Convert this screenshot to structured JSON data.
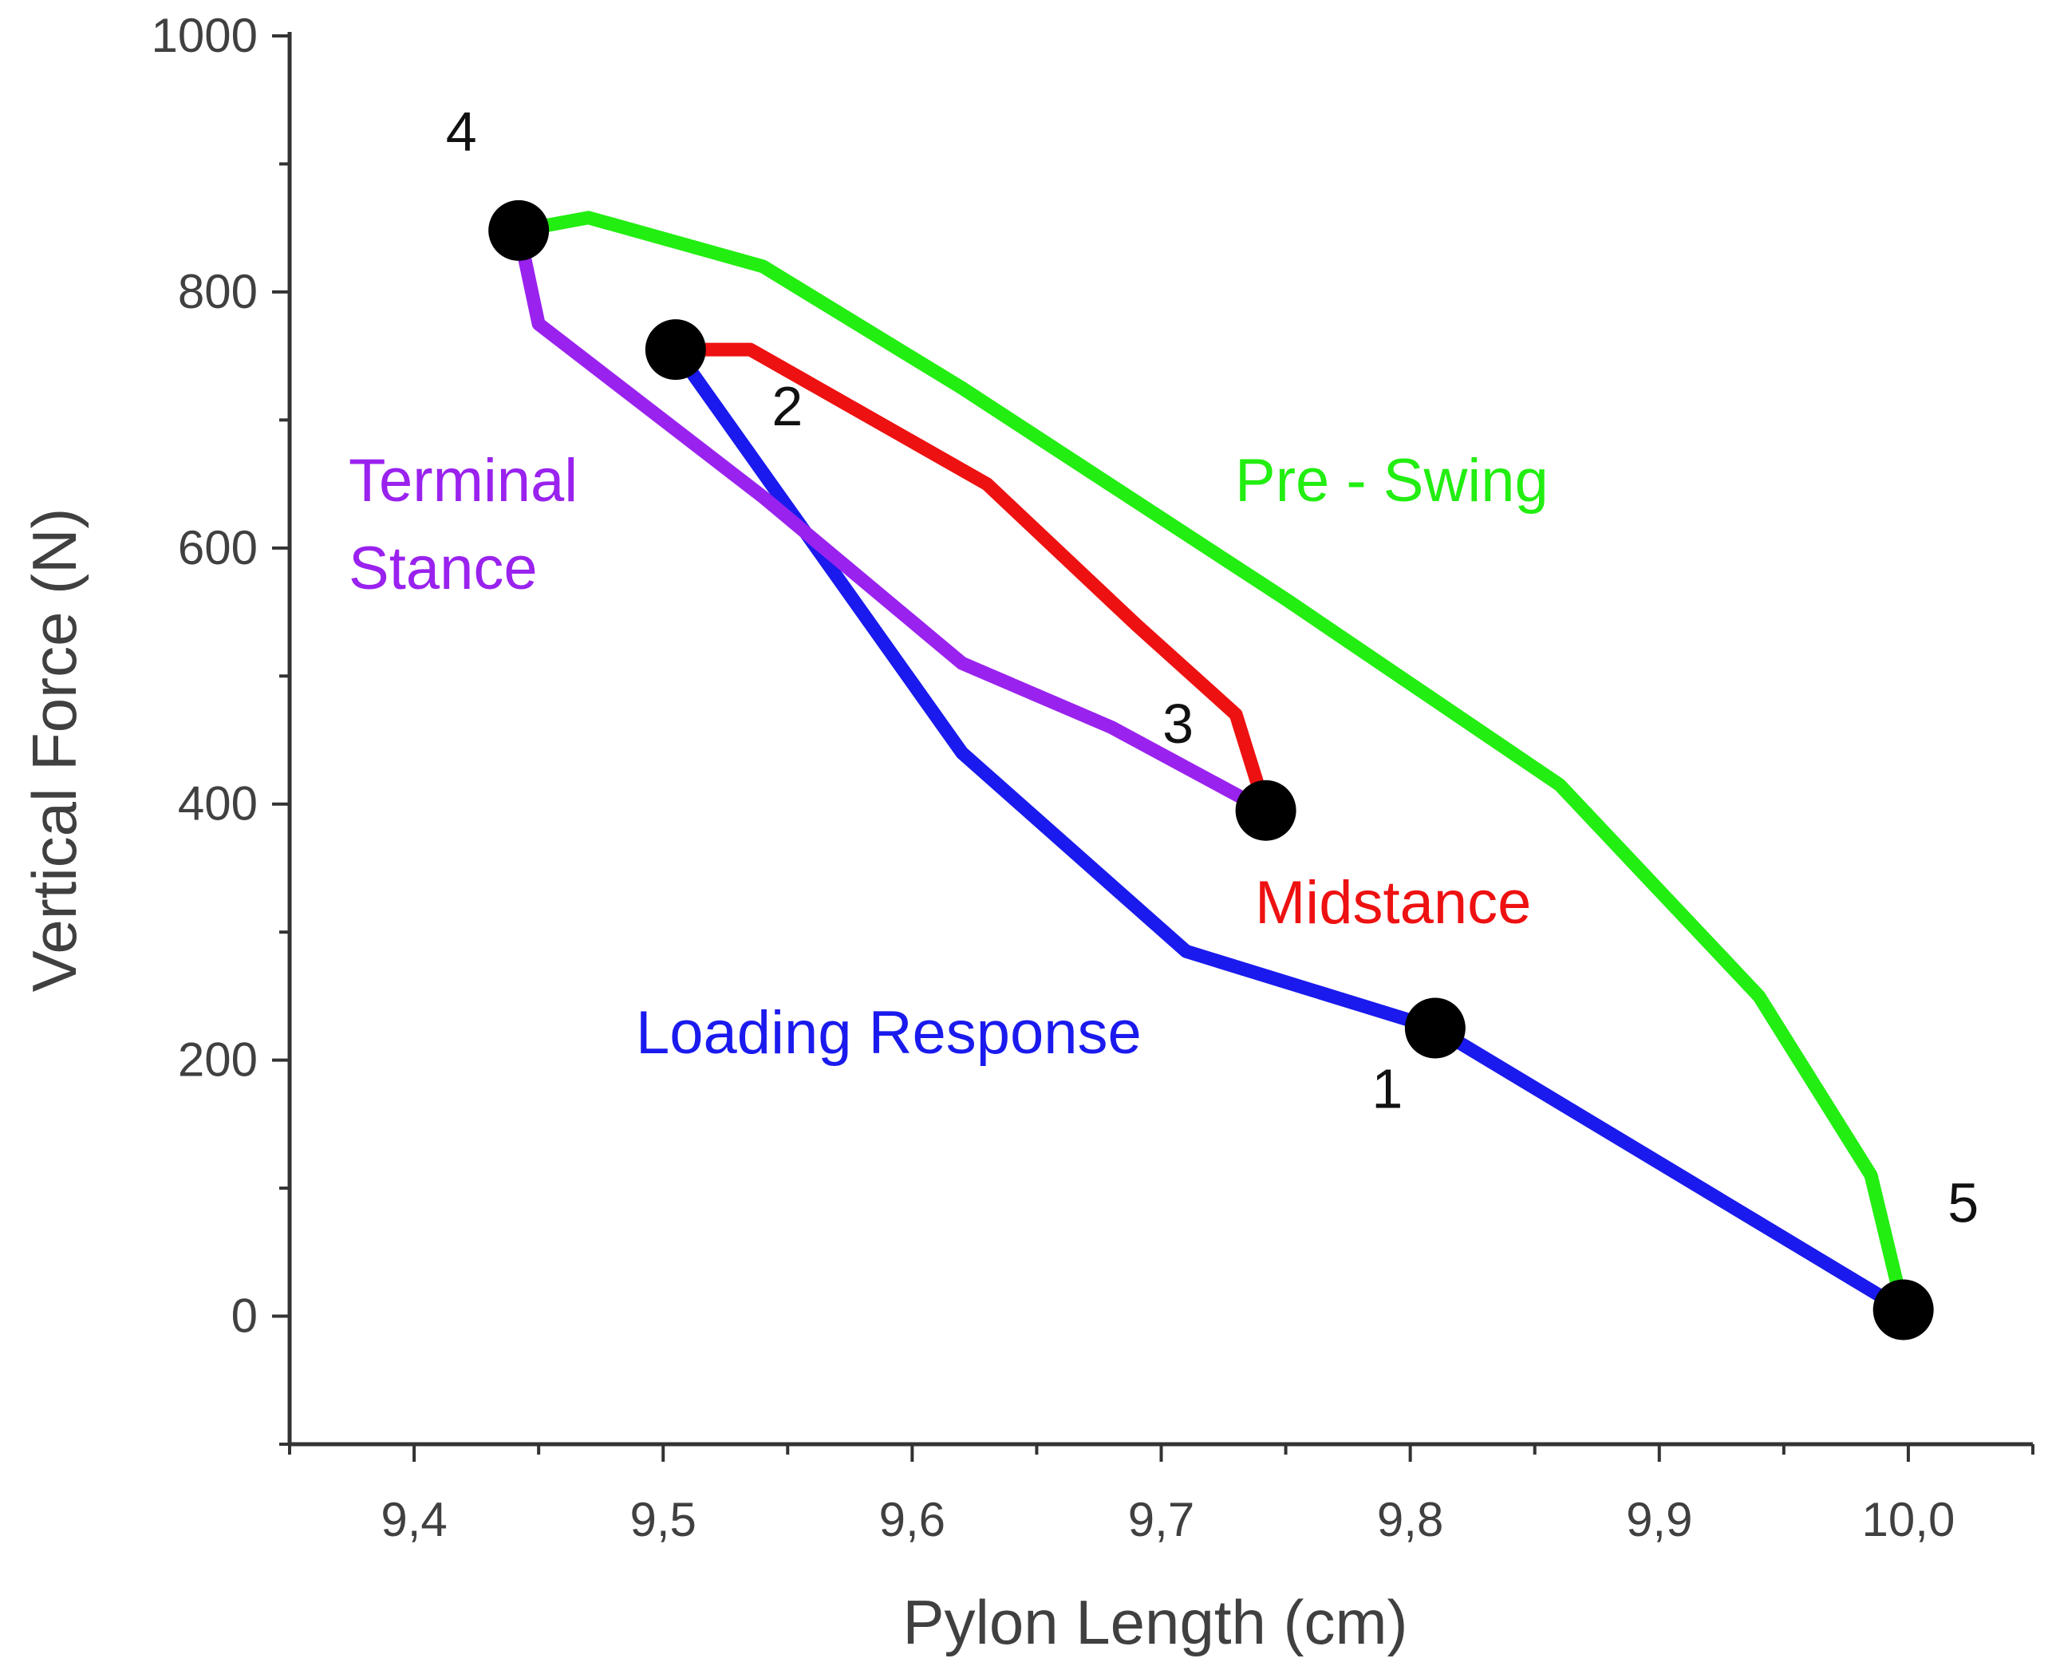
{
  "chart_data": {
    "type": "line",
    "title": "",
    "xlabel": "Pylon Length (cm)",
    "ylabel": "Vertical Force (N)",
    "xlim": [
      9.35,
      10.05
    ],
    "ylim": [
      -100,
      1000
    ],
    "x_ticks": [
      {
        "value": 9.4,
        "label": "9,4"
      },
      {
        "value": 9.5,
        "label": "9,5"
      },
      {
        "value": 9.6,
        "label": "9,6"
      },
      {
        "value": 9.7,
        "label": "9,7"
      },
      {
        "value": 9.8,
        "label": "9,8"
      },
      {
        "value": 9.9,
        "label": "9,9"
      },
      {
        "value": 10.0,
        "label": "10,0"
      }
    ],
    "y_ticks": [
      {
        "value": 0,
        "label": "0"
      },
      {
        "value": 200,
        "label": "200"
      },
      {
        "value": 400,
        "label": "400"
      },
      {
        "value": 600,
        "label": "600"
      },
      {
        "value": 800,
        "label": "800"
      },
      {
        "value": 1000,
        "label": "1000"
      }
    ],
    "grid": false,
    "series": [
      {
        "name": "Loading Response",
        "color": "#1a1aee",
        "x": [
          9.81,
          9.71,
          9.62,
          9.505
        ],
        "y": [
          225,
          285,
          440,
          755
        ]
      },
      {
        "name": "Loading Response (to 1)",
        "color": "#1a1aee",
        "x": [
          9.998,
          9.81
        ],
        "y": [
          5,
          225
        ]
      },
      {
        "name": "Midstance",
        "color": "#ee1111",
        "x": [
          9.505,
          9.535,
          9.63,
          9.69,
          9.73,
          9.742
        ],
        "y": [
          755,
          755,
          650,
          540,
          470,
          395
        ]
      },
      {
        "name": "Terminal Stance",
        "color": "#9a22ee",
        "x": [
          9.742,
          9.68,
          9.62,
          9.54,
          9.45,
          9.442
        ],
        "y": [
          395,
          460,
          510,
          640,
          775,
          848
        ]
      },
      {
        "name": "Pre - Swing",
        "color": "#22ee11",
        "x": [
          9.442,
          9.47,
          9.54,
          9.62,
          9.75,
          9.86,
          9.94,
          9.985,
          9.998
        ],
        "y": [
          848,
          858,
          820,
          725,
          560,
          415,
          250,
          110,
          5
        ]
      }
    ],
    "points": [
      {
        "label": "1",
        "x": 9.81,
        "y": 225
      },
      {
        "label": "2",
        "x": 9.505,
        "y": 755
      },
      {
        "label": "3",
        "x": 9.742,
        "y": 395
      },
      {
        "label": "4",
        "x": 9.442,
        "y": 848
      },
      {
        "label": "5",
        "x": 9.998,
        "y": 5
      }
    ],
    "annotations": [
      {
        "name": "terminal-stance",
        "lines": [
          "Terminal",
          "Stance"
        ],
        "color": "#9a22ee"
      },
      {
        "name": "pre-swing",
        "lines": [
          "Pre - Swing"
        ],
        "color": "#22ee11"
      },
      {
        "name": "midstance",
        "lines": [
          "Midstance"
        ],
        "color": "#ee1111"
      },
      {
        "name": "loading-response",
        "lines": [
          "Loading Response"
        ],
        "color": "#1a1aee"
      }
    ]
  }
}
